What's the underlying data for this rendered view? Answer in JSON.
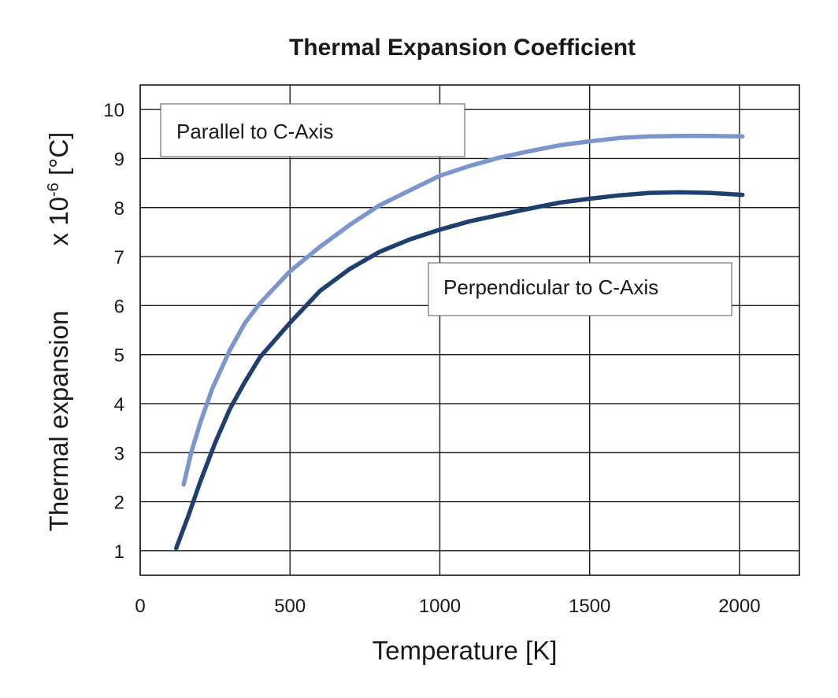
{
  "chart_data": {
    "type": "line",
    "title": "Thermal Expansion Coefficient",
    "xlabel": "Temperature [K]",
    "ylabel_main": "Thermal expansion",
    "ylabel_unit_prefix": "x 10",
    "ylabel_unit_exp": "-6",
    "ylabel_unit_suffix": " [°C]",
    "xlim": [
      0,
      2200
    ],
    "ylim": [
      0.5,
      10.5
    ],
    "x_ticks": [
      0,
      500,
      1000,
      1500,
      2000
    ],
    "y_ticks": [
      1,
      2,
      3,
      4,
      5,
      6,
      7,
      8,
      9,
      10
    ],
    "grid": true,
    "series": [
      {
        "name": "Parallel to  C-Axis",
        "color": "#7b96cc",
        "points": [
          [
            145,
            2.35
          ],
          [
            170,
            3.0
          ],
          [
            200,
            3.6
          ],
          [
            240,
            4.3
          ],
          [
            300,
            5.1
          ],
          [
            350,
            5.65
          ],
          [
            400,
            6.05
          ],
          [
            500,
            6.7
          ],
          [
            600,
            7.2
          ],
          [
            700,
            7.65
          ],
          [
            800,
            8.05
          ],
          [
            900,
            8.35
          ],
          [
            1000,
            8.65
          ],
          [
            1100,
            8.85
          ],
          [
            1200,
            9.02
          ],
          [
            1300,
            9.15
          ],
          [
            1400,
            9.27
          ],
          [
            1500,
            9.35
          ],
          [
            1600,
            9.42
          ],
          [
            1700,
            9.45
          ],
          [
            1800,
            9.46
          ],
          [
            1900,
            9.46
          ],
          [
            2010,
            9.45
          ]
        ]
      },
      {
        "name": "Perpendicular to  C-Axis",
        "color": "#1f3f6e",
        "points": [
          [
            120,
            1.05
          ],
          [
            160,
            1.7
          ],
          [
            200,
            2.4
          ],
          [
            250,
            3.2
          ],
          [
            300,
            3.9
          ],
          [
            350,
            4.45
          ],
          [
            400,
            4.95
          ],
          [
            500,
            5.65
          ],
          [
            600,
            6.3
          ],
          [
            700,
            6.75
          ],
          [
            800,
            7.1
          ],
          [
            900,
            7.35
          ],
          [
            1000,
            7.55
          ],
          [
            1100,
            7.72
          ],
          [
            1200,
            7.85
          ],
          [
            1300,
            7.98
          ],
          [
            1400,
            8.1
          ],
          [
            1500,
            8.18
          ],
          [
            1600,
            8.25
          ],
          [
            1700,
            8.3
          ],
          [
            1800,
            8.31
          ],
          [
            1900,
            8.3
          ],
          [
            2010,
            8.26
          ]
        ]
      }
    ],
    "legend": [
      {
        "label": "Parallel to  C-Axis",
        "placement": "top-left"
      },
      {
        "label": "Perpendicular to  C-Axis",
        "placement": "center-right"
      }
    ]
  }
}
